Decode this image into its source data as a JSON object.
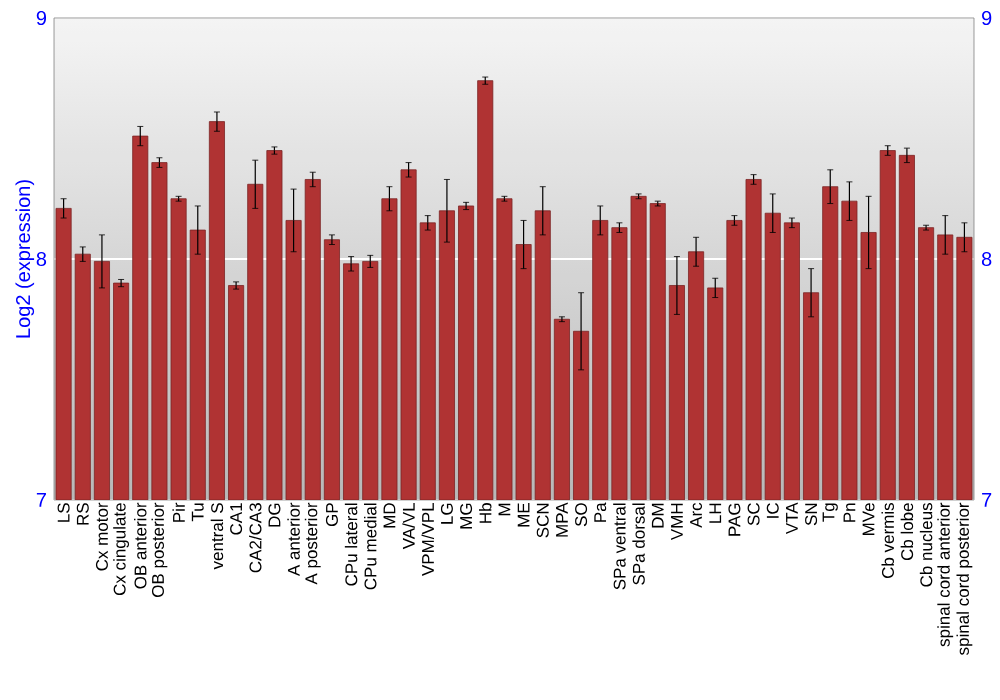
{
  "chart_data": {
    "type": "bar",
    "ylabel": "Log2 (expression)",
    "categories": [
      "LS",
      "RS",
      "Cx motor",
      "Cx cingulate",
      "OB anterior",
      "OB posterior",
      "Pir",
      "Tu",
      "ventral S",
      "CA1",
      "CA2/CA3",
      "DG",
      "A anterior",
      "A posterior",
      "GP",
      "CPu lateral",
      "CPu medial",
      "MD",
      "VA/VL",
      "VPM/VPL",
      "LG",
      "MG",
      "Hb",
      "M",
      "ME",
      "SCN",
      "MPA",
      "SO",
      "Pa",
      "SPa ventral",
      "SPa dorsal",
      "DM",
      "VMH",
      "Arc",
      "LH",
      "PAG",
      "SC",
      "IC",
      "VTA",
      "SN",
      "Tg",
      "Pn",
      "MVe",
      "Cb vermis",
      "Cb lobe",
      "Cb nucleus",
      "spinal cord anterior",
      "spinal cord posterior"
    ],
    "values": [
      8.21,
      8.02,
      7.99,
      7.9,
      8.51,
      8.4,
      8.25,
      8.12,
      8.57,
      7.89,
      8.31,
      8.45,
      8.16,
      8.33,
      8.08,
      7.98,
      7.99,
      8.25,
      8.37,
      8.15,
      8.2,
      8.22,
      8.74,
      8.25,
      8.06,
      8.2,
      7.75,
      7.7,
      8.16,
      8.13,
      8.26,
      8.23,
      7.89,
      8.03,
      7.88,
      8.16,
      8.33,
      8.19,
      8.15,
      7.86,
      8.3,
      8.24,
      8.11,
      8.45,
      8.43,
      8.13,
      8.1,
      8.09
    ],
    "errors": [
      0.04,
      0.03,
      0.11,
      0.015,
      0.04,
      0.02,
      0.01,
      0.1,
      0.04,
      0.015,
      0.1,
      0.015,
      0.13,
      0.03,
      0.02,
      0.03,
      0.025,
      0.05,
      0.03,
      0.03,
      0.13,
      0.015,
      0.015,
      0.01,
      0.1,
      0.1,
      0.01,
      0.16,
      0.06,
      0.02,
      0.01,
      0.01,
      0.12,
      0.06,
      0.04,
      0.02,
      0.02,
      0.08,
      0.02,
      0.1,
      0.07,
      0.08,
      0.15,
      0.02,
      0.03,
      0.01,
      0.08,
      0.06
    ],
    "color": "#b03333",
    "ylim": [
      7,
      9
    ],
    "yticks": [
      7,
      8,
      9
    ],
    "y2lim": [
      7,
      9
    ],
    "y2ticks": [
      7,
      8,
      9
    ],
    "grid": "y"
  }
}
